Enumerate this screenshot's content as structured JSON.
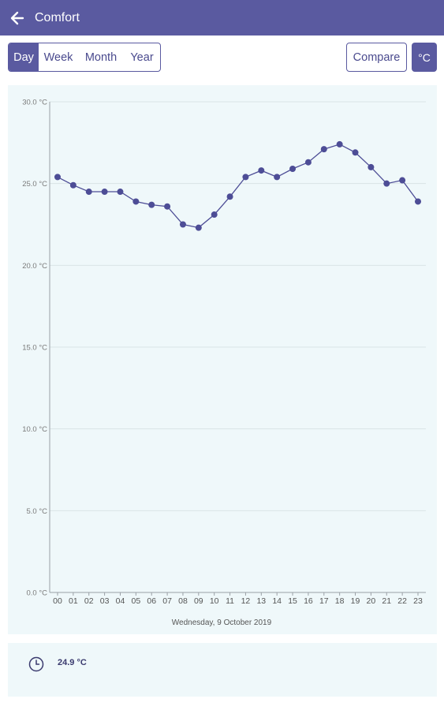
{
  "app": {
    "title": "Comfort",
    "back_icon": "arrow-left-icon"
  },
  "period_tabs": [
    {
      "label": "Day",
      "active": true
    },
    {
      "label": "Week",
      "active": false
    },
    {
      "label": "Month",
      "active": false
    },
    {
      "label": "Year",
      "active": false
    }
  ],
  "toolbar": {
    "compare_label": "Compare",
    "unit_label": "°C"
  },
  "colors": {
    "primary": "#5a5aa0",
    "card_bg": "#eff8fa",
    "line": "#4d4d96"
  },
  "chart_data": {
    "type": "line",
    "x": [
      "00",
      "01",
      "02",
      "03",
      "04",
      "05",
      "06",
      "07",
      "08",
      "09",
      "10",
      "11",
      "12",
      "13",
      "14",
      "15",
      "16",
      "17",
      "18",
      "19",
      "20",
      "21",
      "22",
      "23"
    ],
    "series": [
      {
        "values": [
          25.4,
          24.9,
          24.5,
          24.5,
          24.5,
          23.9,
          23.7,
          23.6,
          22.5,
          22.3,
          23.1,
          24.2,
          25.4,
          25.8,
          25.4,
          25.9,
          26.3,
          27.1,
          27.4,
          26.9,
          26.0,
          25.0,
          25.2,
          23.9
        ]
      }
    ],
    "y_ticks": [
      "30.0 °C",
      "25.0 °C",
      "20.0 °C",
      "15.0 °C",
      "10.0 °C",
      "5.0 °C",
      "0.0 °C"
    ],
    "ylim": [
      0,
      30
    ],
    "xlabel": "Wednesday, 9 October 2019",
    "grid": true
  },
  "summary": {
    "icon": "clock-icon",
    "value": "24.9 °C"
  }
}
